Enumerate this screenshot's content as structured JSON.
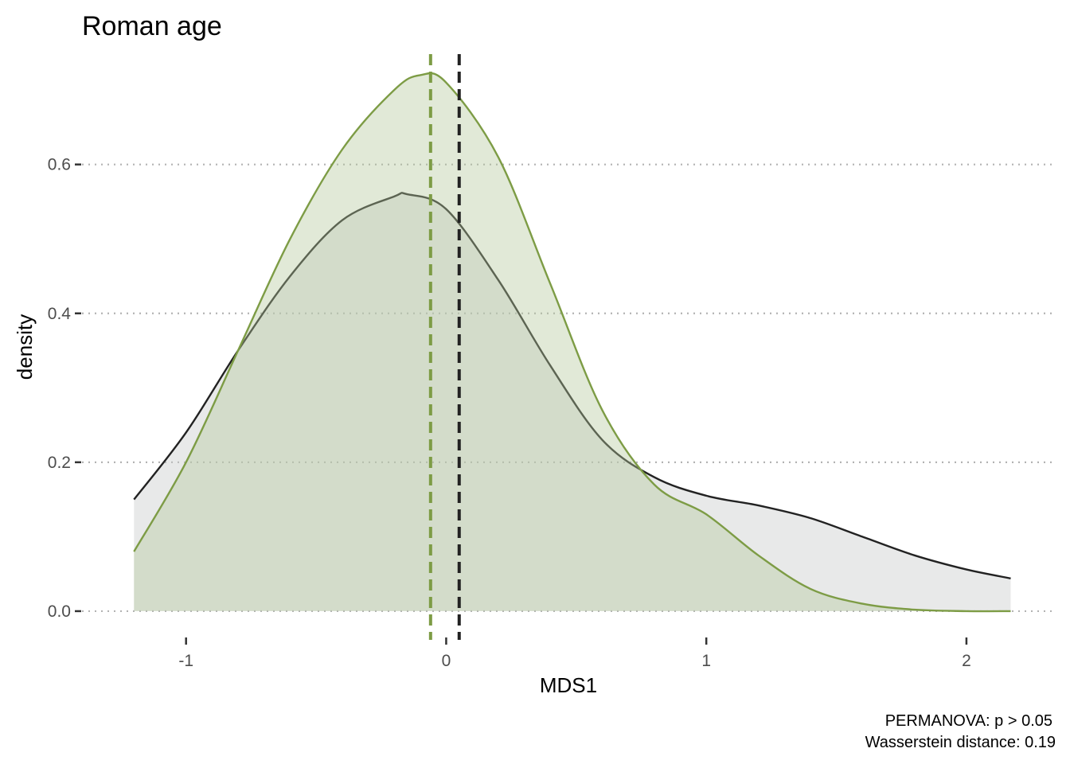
{
  "chart_data": {
    "type": "area",
    "title": "Roman age",
    "xlabel": "MDS1",
    "ylabel": "density",
    "xlim": [
      -1.4,
      2.34
    ],
    "ylim": [
      -0.03,
      0.76
    ],
    "x_ticks": [
      -1,
      0,
      1,
      2
    ],
    "x_tick_labels": [
      "-1",
      "0",
      "1",
      "2"
    ],
    "y_ticks": [
      0.0,
      0.2,
      0.4,
      0.6
    ],
    "y_tick_labels": [
      "0.0",
      "0.2",
      "0.4",
      "0.6"
    ],
    "grid": "horizontal dotted",
    "legend": "none",
    "series": [
      {
        "color": "#222222",
        "fill": "#c6c9c9",
        "mean_line_x": 0.05,
        "x": [
          -1.2,
          -1.0,
          -0.8,
          -0.6,
          -0.4,
          -0.2,
          -0.15,
          0.0,
          0.2,
          0.4,
          0.6,
          0.8,
          1.0,
          1.2,
          1.4,
          1.6,
          1.8,
          2.0,
          2.17
        ],
        "y": [
          0.15,
          0.24,
          0.35,
          0.45,
          0.525,
          0.557,
          0.56,
          0.54,
          0.445,
          0.33,
          0.23,
          0.18,
          0.155,
          0.142,
          0.125,
          0.1,
          0.075,
          0.056,
          0.044
        ]
      },
      {
        "color": "#7d9c45",
        "fill": "#b5c99a",
        "mean_line_x": -0.06,
        "x": [
          -1.2,
          -1.0,
          -0.8,
          -0.6,
          -0.4,
          -0.2,
          -0.1,
          0.0,
          0.2,
          0.4,
          0.6,
          0.8,
          1.0,
          1.2,
          1.4,
          1.6,
          1.8,
          2.0,
          2.17
        ],
        "y": [
          0.08,
          0.2,
          0.35,
          0.5,
          0.62,
          0.7,
          0.72,
          0.71,
          0.61,
          0.44,
          0.27,
          0.17,
          0.13,
          0.075,
          0.03,
          0.01,
          0.002,
          0.0,
          0.0
        ]
      }
    ]
  },
  "caption": {
    "line1": "PERMANOVA: p > 0.05",
    "line2": "Wasserstein distance: 0.19"
  }
}
